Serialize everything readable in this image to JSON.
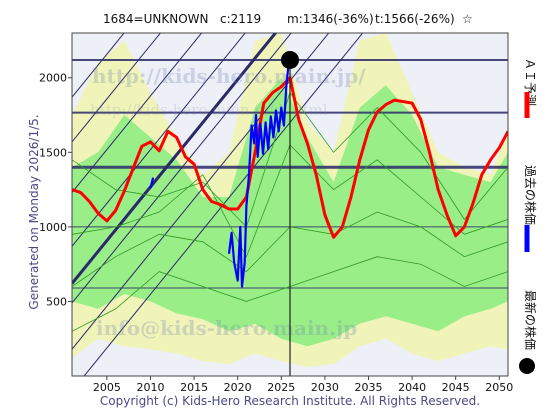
{
  "header": {
    "code": "1684=UNKNOWN",
    "current": "c:2119",
    "min": "m:1346(-36%)",
    "target": "t:1566(-26%)",
    "star": "☆"
  },
  "side_text": {
    "generated": "Generated on Monday 2026/1/5."
  },
  "footer": {
    "copyright": "Copyright (c) Kids-Hero Research Institute. All Rights Reserved."
  },
  "watermarks": {
    "url1": "http://kids-hero.main.jp/",
    "url2": "http://kids-hero.main.jp/dl.html",
    "email": "info@kids-hero.main.jp"
  },
  "legend": [
    {
      "label": "ＡＩ予測",
      "color": "#ff0000",
      "shape": "line"
    },
    {
      "label": "過去の株価",
      "color": "#0000ff",
      "shape": "line"
    },
    {
      "label": "最新の株価",
      "color": "#000000",
      "shape": "dot"
    }
  ],
  "colors": {
    "plot_bg": "#eef0f7",
    "yellow_band": "#f0f4b8",
    "green_band": "#99ee88",
    "green_line": "#2f9a22",
    "grid_navy": "#2a2a6a",
    "ai_line": "#ff0000",
    "past_line": "#0000ff"
  },
  "chart_data": {
    "type": "line",
    "xlim": [
      2001,
      2051
    ],
    "ylim": [
      0,
      2300
    ],
    "x_ticks": [
      2005,
      2010,
      2015,
      2020,
      2025,
      2030,
      2035,
      2040,
      2045,
      2050
    ],
    "y_ticks": [
      500,
      1000,
      1500,
      2000
    ],
    "grid": true,
    "legend_position": "right-outside",
    "latest_point": {
      "x": 2026.0,
      "y": 2119
    },
    "current_price_line": 2119,
    "horizontal_levels": [
      {
        "y": 2119,
        "weight": 2
      },
      {
        "y": 1766,
        "weight": 2
      },
      {
        "y": 1400,
        "weight": 3
      },
      {
        "y": 1000,
        "weight": 1
      },
      {
        "y": 590,
        "weight": 1
      }
    ],
    "trend_channel": {
      "slope_per_year": 72,
      "intercepts_at_2001": [
        -100,
        180,
        490,
        620,
        870,
        1230,
        1570,
        1870
      ],
      "widths": [
        1,
        1,
        1,
        3,
        1,
        1,
        1,
        1
      ]
    },
    "series": [
      {
        "name": "ＡＩ予測",
        "x": [
          2001,
          2002,
          2003,
          2004,
          2005,
          2006,
          2007,
          2008,
          2009,
          2010,
          2011,
          2012,
          2013,
          2014,
          2015,
          2016,
          2017,
          2018,
          2019,
          2020,
          2021,
          2022,
          2023,
          2024,
          2025,
          2026,
          2027,
          2028,
          2029,
          2030,
          2031,
          2032,
          2033,
          2034,
          2035,
          2036,
          2037,
          2038,
          2039,
          2040,
          2041,
          2042,
          2043,
          2044,
          2045,
          2046,
          2047,
          2048,
          2049,
          2050,
          2051
        ],
        "y": [
          1250,
          1230,
          1170,
          1090,
          1040,
          1110,
          1240,
          1390,
          1540,
          1570,
          1510,
          1640,
          1600,
          1470,
          1420,
          1250,
          1170,
          1150,
          1120,
          1120,
          1200,
          1500,
          1830,
          1900,
          1940,
          2000,
          1720,
          1560,
          1350,
          1080,
          930,
          1000,
          1200,
          1450,
          1650,
          1770,
          1820,
          1850,
          1840,
          1830,
          1720,
          1500,
          1250,
          1080,
          940,
          1000,
          1160,
          1350,
          1450,
          1530,
          1640
        ]
      },
      {
        "name": "過去の株価",
        "x": [
          2010.0,
          2010.3,
          2019.0,
          2019.3,
          2019.6,
          2020.0,
          2020.3,
          2020.5,
          2020.8,
          2021.0,
          2021.3,
          2021.6,
          2021.9,
          2022.1,
          2022.3,
          2022.6,
          2022.9,
          2023.2,
          2023.5,
          2023.8,
          2024.1,
          2024.4,
          2024.7,
          2025.0,
          2025.3,
          2025.6,
          2025.9
        ],
        "y": [
          1260,
          1330,
          820,
          960,
          760,
          640,
          1000,
          600,
          760,
          1140,
          1350,
          1680,
          1560,
          1750,
          1470,
          1690,
          1490,
          1700,
          1520,
          1740,
          1600,
          1780,
          1640,
          1800,
          1680,
          1960,
          2119
        ]
      },
      {
        "name": "",
        "x": [
          2001,
          2006,
          2011,
          2016,
          2021,
          2026,
          2031,
          2036,
          2041,
          2046,
          2051
        ],
        "y": [
          1450,
          1250,
          1200,
          1300,
          1000,
          1900,
          1500,
          1800,
          1500,
          1050,
          1400
        ]
      },
      {
        "name": "",
        "x": [
          2001,
          2006,
          2011,
          2016,
          2021,
          2026,
          2031,
          2036,
          2041,
          2046,
          2051
        ],
        "y": [
          950,
          1000,
          1100,
          1350,
          800,
          1550,
          1250,
          1450,
          1200,
          950,
          1050
        ]
      },
      {
        "name": "",
        "x": [
          2001,
          2006,
          2011,
          2016,
          2021,
          2026,
          2031,
          2036,
          2041,
          2046,
          2051
        ],
        "y": [
          600,
          800,
          950,
          900,
          700,
          1000,
          950,
          1100,
          1000,
          800,
          900
        ]
      },
      {
        "name": "",
        "x": [
          2001,
          2006,
          2011,
          2016,
          2021,
          2026,
          2031,
          2036,
          2041,
          2046,
          2051
        ],
        "y": [
          300,
          450,
          700,
          600,
          500,
          600,
          700,
          800,
          750,
          600,
          700
        ]
      }
    ],
    "yellow_band": {
      "x": [
        2001,
        2004,
        2007,
        2010,
        2013,
        2016,
        2019,
        2022,
        2025,
        2028,
        2031,
        2034,
        2037,
        2040,
        2043,
        2046,
        2049,
        2051
      ],
      "upper": [
        1750,
        2100,
        2250,
        1900,
        1600,
        1350,
        1500,
        2250,
        2300,
        1700,
        1500,
        2250,
        2300,
        1900,
        1500,
        1400,
        1350,
        1650
      ],
      "lower": [
        120,
        250,
        200,
        180,
        150,
        100,
        80,
        150,
        100,
        60,
        80,
        200,
        250,
        150,
        100,
        150,
        200,
        180
      ]
    },
    "green_band": {
      "x": [
        2001,
        2004,
        2007,
        2010,
        2013,
        2016,
        2019,
        2022,
        2025,
        2028,
        2031,
        2034,
        2037,
        2040,
        2043,
        2046,
        2049,
        2051
      ],
      "upper": [
        1400,
        1500,
        1750,
        1600,
        1450,
        1200,
        1200,
        1800,
        2000,
        1600,
        1300,
        1800,
        1950,
        1750,
        1400,
        1350,
        1300,
        1500
      ],
      "lower": [
        500,
        450,
        550,
        500,
        420,
        380,
        300,
        350,
        250,
        200,
        250,
        350,
        400,
        350,
        300,
        400,
        450,
        500
      ]
    }
  }
}
